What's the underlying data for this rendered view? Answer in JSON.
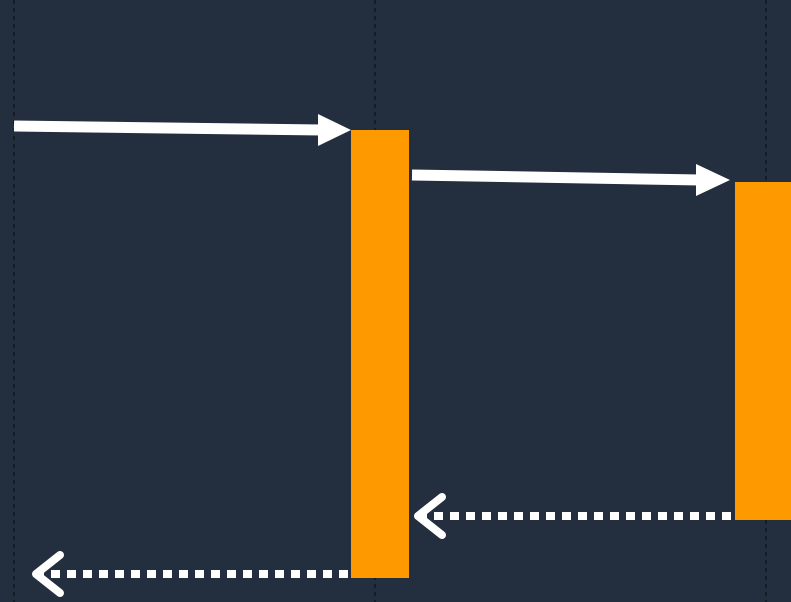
{
  "diagram": {
    "type": "sequence-diagram-fragment",
    "colors": {
      "background": "#232F3E",
      "lifeline": "#0B1118",
      "activation": "#FF9900",
      "message": "#FFFFFF"
    },
    "lifelines": [
      {
        "id": "left"
      },
      {
        "id": "middle"
      },
      {
        "id": "right"
      }
    ],
    "activations": [
      {
        "lifeline": "middle"
      },
      {
        "lifeline": "right"
      }
    ],
    "messages": [
      {
        "from": "left",
        "to": "middle",
        "kind": "synchronous-call",
        "line_style": "solid",
        "arrowhead": "filled-triangle"
      },
      {
        "from": "middle",
        "to": "right",
        "kind": "synchronous-call",
        "line_style": "solid",
        "arrowhead": "filled-triangle"
      },
      {
        "from": "right",
        "to": "middle",
        "kind": "return",
        "line_style": "dotted",
        "arrowhead": "open-chevron"
      },
      {
        "from": "middle",
        "to": "left",
        "kind": "return",
        "line_style": "dotted",
        "arrowhead": "open-chevron"
      }
    ]
  }
}
